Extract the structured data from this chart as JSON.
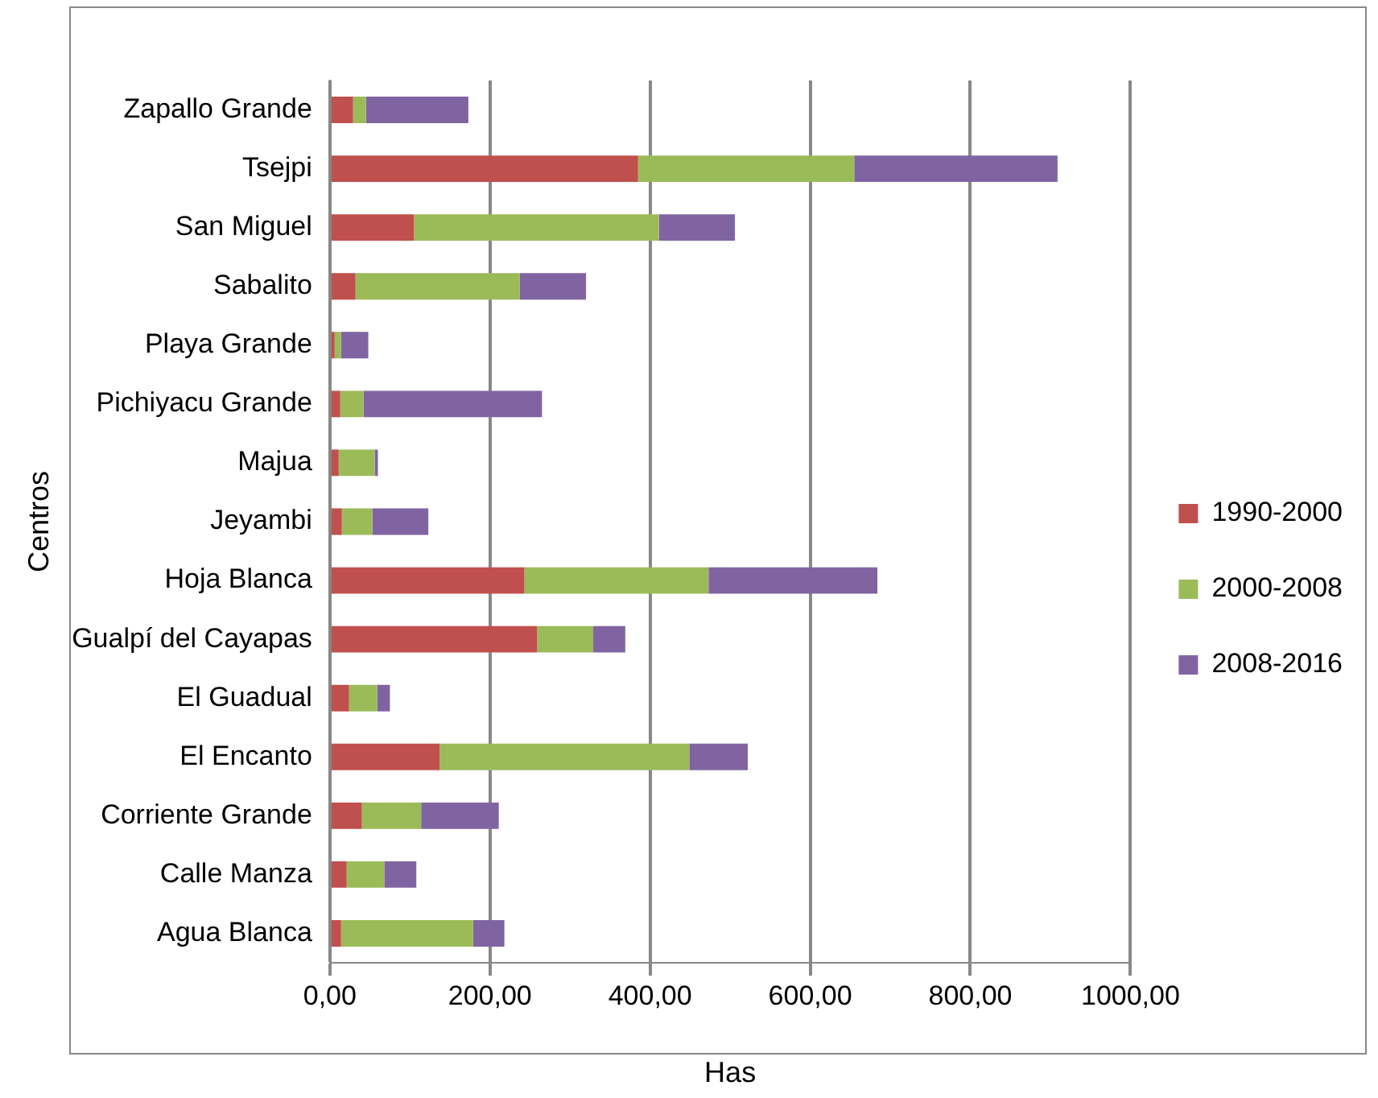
{
  "chart_data": {
    "type": "bar",
    "orientation": "horizontal",
    "stacked": true,
    "xlabel": "Has",
    "ylabel": "Centros",
    "categories": [
      "Zapallo Grande",
      "Tsejpi",
      "San Miguel",
      "Sabalito",
      "Playa Grande",
      "Pichiyacu Grande",
      "Majua",
      "Jeyambi",
      "Hoja Blanca",
      "Gualpí del Cayapas",
      "El Guadual",
      "El Encanto",
      "Corriente Grande",
      "Calle Manza",
      "Agua Blanca"
    ],
    "series": [
      {
        "name": "1990-2000",
        "color": "#c0504d",
        "values": [
          29,
          385,
          105,
          32,
          6,
          13,
          11,
          15,
          243,
          259,
          24,
          137,
          40,
          21,
          14
        ]
      },
      {
        "name": "2000-2008",
        "color": "#9bbb59",
        "values": [
          16,
          270,
          306,
          205,
          8,
          29,
          45,
          38,
          230,
          70,
          35,
          312,
          74,
          47,
          165
        ]
      },
      {
        "name": "2008-2016",
        "color": "#8064a2",
        "values": [
          128,
          254,
          95,
          83,
          34,
          223,
          4,
          70,
          211,
          40,
          16,
          73,
          97,
          40,
          39
        ]
      }
    ],
    "xlim": [
      0,
      1000
    ],
    "xticks": [
      {
        "value": 0,
        "label": "0,00"
      },
      {
        "value": 200,
        "label": "200,00"
      },
      {
        "value": 400,
        "label": "400,00"
      },
      {
        "value": 600,
        "label": "600,00"
      },
      {
        "value": 800,
        "label": "800,00"
      },
      {
        "value": 1000,
        "label": "1000,00"
      }
    ],
    "grid": "x",
    "legend": "right"
  }
}
